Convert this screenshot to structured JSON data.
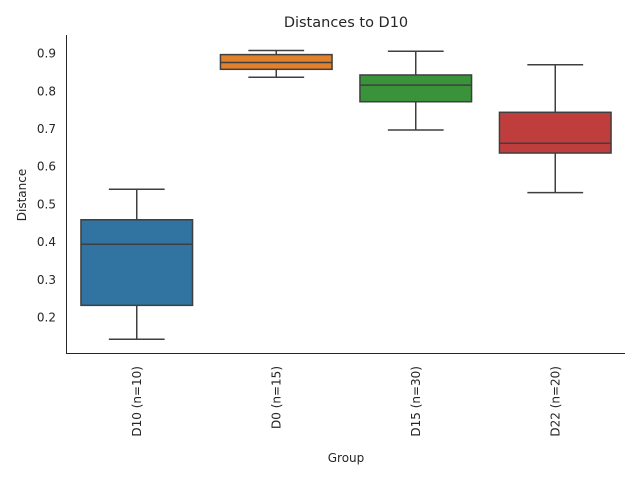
{
  "chart_data": {
    "type": "box",
    "title": "Distances to D10",
    "xlabel": "Group",
    "ylabel": "Distance",
    "ylim": [
      0.102,
      0.948
    ],
    "yticks": [
      0.2,
      0.3,
      0.4,
      0.5,
      0.6,
      0.7,
      0.8,
      0.9
    ],
    "ytick_labels": [
      "0.2",
      "0.3",
      "0.4",
      "0.5",
      "0.6",
      "0.7",
      "0.8",
      "0.9"
    ],
    "grid": false,
    "categories": [
      "D10 (n=10)",
      "D0 (n=15)",
      "D15 (n=30)",
      "D22 (n=20)"
    ],
    "boxes": [
      {
        "whisker_low": 0.141,
        "q1": 0.231,
        "median": 0.393,
        "q3": 0.458,
        "whisker_high": 0.539,
        "color": "#3274a1"
      },
      {
        "whisker_low": 0.836,
        "q1": 0.857,
        "median": 0.875,
        "q3": 0.896,
        "whisker_high": 0.907,
        "color": "#e1812c"
      },
      {
        "whisker_low": 0.696,
        "q1": 0.771,
        "median": 0.815,
        "q3": 0.842,
        "whisker_high": 0.905,
        "color": "#3a923a"
      },
      {
        "whisker_low": 0.53,
        "q1": 0.635,
        "median": 0.661,
        "q3": 0.743,
        "whisker_high": 0.869,
        "color": "#c03d3e"
      }
    ]
  }
}
